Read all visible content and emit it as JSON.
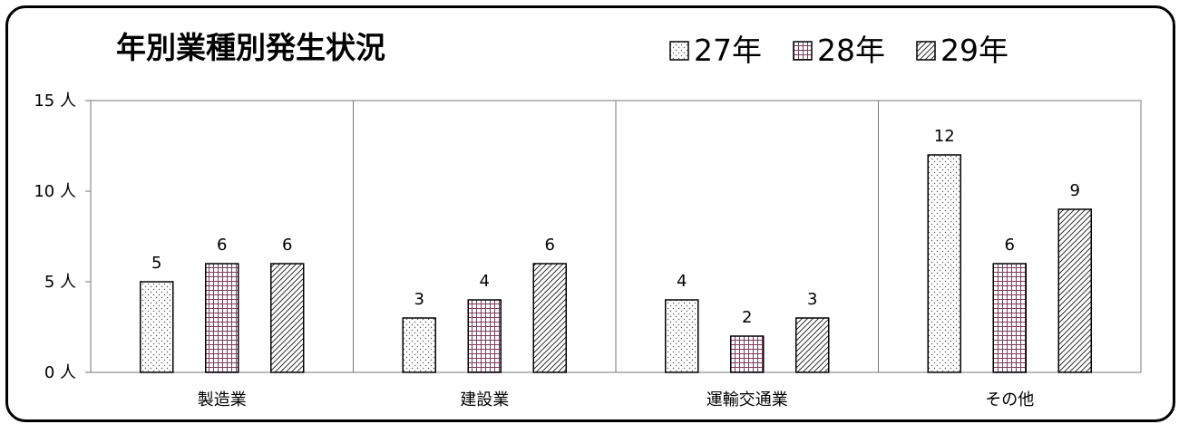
{
  "chart_data": {
    "type": "bar",
    "title": "年別業種別発生状況",
    "categories": [
      "製造業",
      "建設業",
      "運輸交通業",
      "その他"
    ],
    "series": [
      {
        "name": "27年",
        "values": [
          5,
          3,
          4,
          12
        ],
        "pattern": "dots"
      },
      {
        "name": "28年",
        "values": [
          6,
          4,
          2,
          6
        ],
        "pattern": "grid"
      },
      {
        "name": "29年",
        "values": [
          6,
          6,
          3,
          9
        ],
        "pattern": "diagonal"
      }
    ],
    "ylim": [
      0,
      15
    ],
    "yticks": [
      {
        "value": 0,
        "label": "0 人"
      },
      {
        "value": 5,
        "label": "5 人"
      },
      {
        "value": 10,
        "label": "10 人"
      },
      {
        "value": 15,
        "label": "15 人"
      }
    ],
    "legend_position": "top-right",
    "grid": false,
    "colors": {
      "grid_series": "#7a3b5a",
      "outline": "#000000"
    }
  }
}
